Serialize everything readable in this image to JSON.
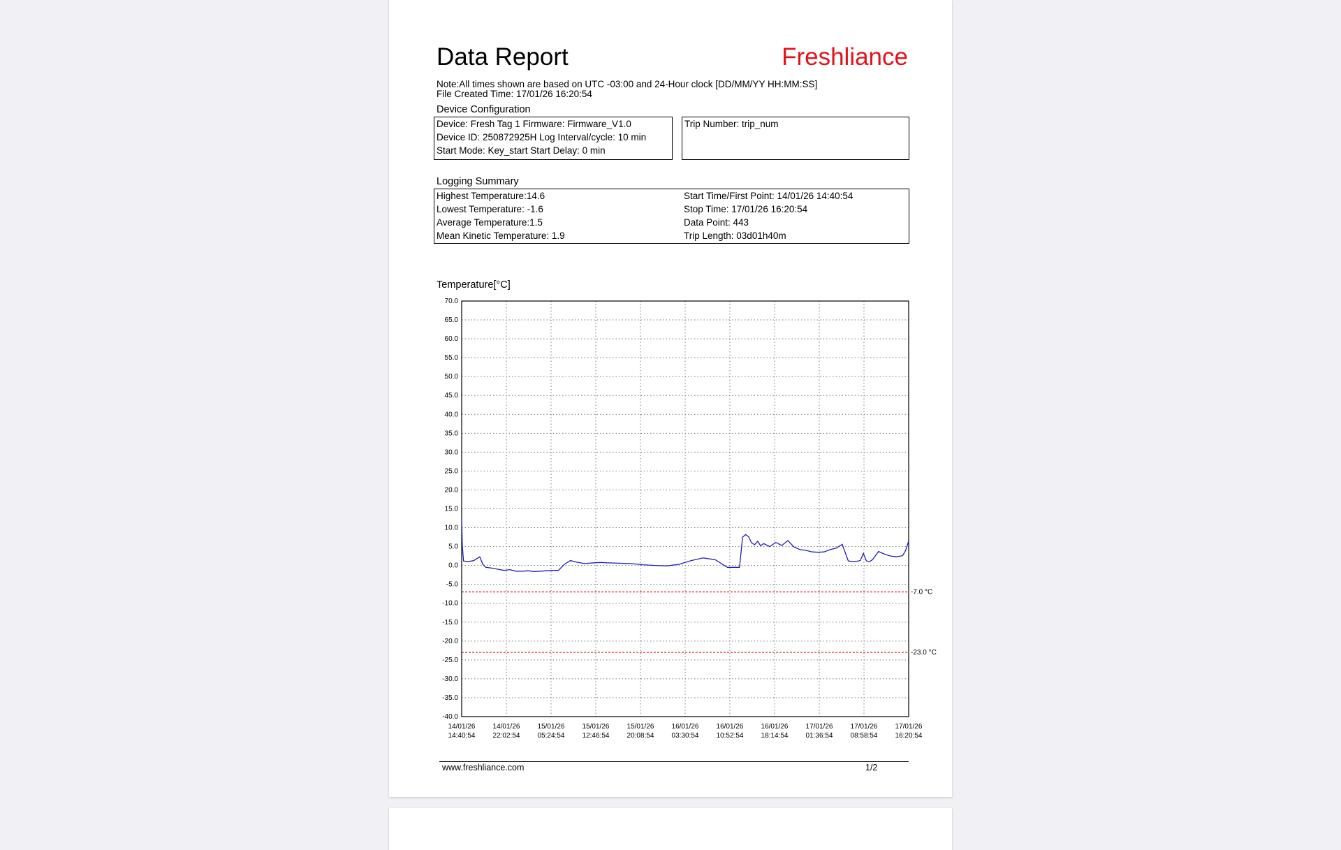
{
  "report": {
    "title": "Data Report",
    "brand": "Freshliance",
    "brand_color": "#e3131b",
    "note": "Note:All times shown are based on UTC -03:00   and 24-Hour clock   [DD/MM/YY HH:MM:SS]",
    "file_created": "File Created Time: 17/01/26 16:20:54"
  },
  "device_config": {
    "heading": "Device Configuration",
    "lines": [
      "Device:  Fresh Tag 1      Firmware: Firmware_V1.0",
      "Device ID: 250872925H Log Interval/cycle:  10 min",
      "Start Mode: Key_start    Start Delay:  0 min"
    ],
    "trip": "Trip Number: trip_num"
  },
  "logging_summary": {
    "heading": "Logging Summary",
    "left": [
      "Highest Temperature:14.6",
      "Lowest Temperature: -1.6",
      "Average Temperature:1.5",
      "Mean Kinetic Temperature: 1.9"
    ],
    "right": [
      "Start Time/First Point:  14/01/26 14:40:54",
      "Stop Time: 17/01/26 16:20:54",
      "Data Point:  443",
      "Trip Length:  03d01h40m"
    ]
  },
  "chart_data": {
    "type": "line",
    "title": "",
    "ylabel": "Temperature[°C]",
    "xlabel": "",
    "ylim": [
      -40,
      70
    ],
    "yticks": [
      "70.0",
      "65.0",
      "60.0",
      "55.0",
      "50.0",
      "45.0",
      "40.0",
      "35.0",
      "30.0",
      "25.0",
      "20.0",
      "15.0",
      "10.0",
      "5.0",
      "0.0",
      "-5.0",
      "-10.0",
      "-15.0",
      "-20.0",
      "-25.0",
      "-30.0",
      "-35.0",
      "-40.0"
    ],
    "xticks": [
      [
        "14/01/26",
        "14:40:54"
      ],
      [
        "14/01/26",
        "22:02:54"
      ],
      [
        "15/01/26",
        "05:24:54"
      ],
      [
        "15/01/26",
        "12:46:54"
      ],
      [
        "15/01/26",
        "20:08:54"
      ],
      [
        "16/01/26",
        "03:30:54"
      ],
      [
        "16/01/26",
        "10:52:54"
      ],
      [
        "16/01/26",
        "18:14:54"
      ],
      [
        "17/01/26",
        "01:36:54"
      ],
      [
        "17/01/26",
        "08:58:54"
      ],
      [
        "17/01/26",
        "16:20:54"
      ]
    ],
    "grid": true,
    "x_hours": [
      0,
      0.1,
      0.3,
      1,
      2,
      3,
      3.5,
      4,
      5,
      6,
      7,
      8,
      9,
      10,
      11,
      12,
      13,
      14,
      15,
      16,
      17,
      18,
      19,
      20,
      20.5,
      21,
      22,
      23,
      24,
      26,
      28,
      30,
      32,
      34,
      36,
      38,
      40,
      42,
      44,
      46,
      46.5,
      47,
      47.5,
      48,
      48.5,
      49,
      49.5,
      50,
      51,
      52,
      53,
      54,
      55,
      56,
      57,
      58,
      59,
      60,
      61,
      62,
      63,
      64,
      65,
      66,
      66.5,
      67,
      67.5,
      68,
      69,
      70,
      71,
      72,
      73,
      73.5,
      74
    ],
    "series": [
      {
        "name": "",
        "color": "#1f1fb4",
        "values": [
          13,
          5.5,
          1.2,
          1.0,
          1.3,
          2.3,
          0.3,
          -0.5,
          -0.7,
          -1.0,
          -1.3,
          -1.1,
          -1.5,
          -1.5,
          -1.4,
          -1.6,
          -1.5,
          -1.4,
          -1.3,
          -1.3,
          0.3,
          1.3,
          0.9,
          0.6,
          0.5,
          0.6,
          0.7,
          0.8,
          0.7,
          0.6,
          0.5,
          0.2,
          0.0,
          -0.1,
          0.3,
          1.3,
          2.0,
          1.5,
          -0.5,
          -0.5,
          7.5,
          8.2,
          7.6,
          6.0,
          5.5,
          6.4,
          5.2,
          5.8,
          5.0,
          6.1,
          5.3,
          6.6,
          4.9,
          4.2,
          4.0,
          3.6,
          3.5,
          3.6,
          4.2,
          4.6,
          5.6,
          1.2,
          1.0,
          1.3,
          3.2,
          1.2,
          1.0,
          1.5,
          3.7,
          3.0,
          2.5,
          2.3,
          2.6,
          4.0,
          6.5
        ]
      }
    ],
    "thresholds": [
      {
        "value": -7.0,
        "label": "-7.0  °C",
        "color": "#e3131b"
      },
      {
        "value": -23.0,
        "label": "-23.0 °C",
        "color": "#e3131b"
      }
    ]
  },
  "footer": {
    "url": "www.freshliance.com",
    "page": "1/2"
  }
}
